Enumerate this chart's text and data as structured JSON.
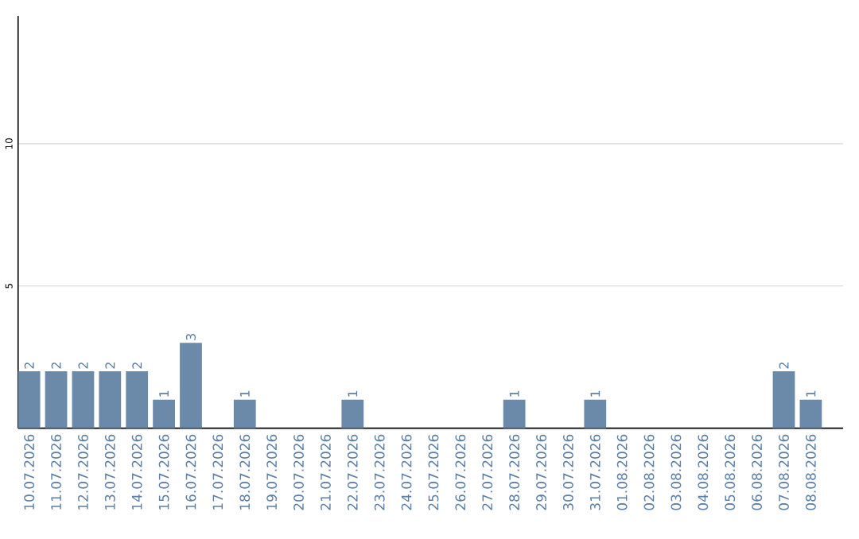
{
  "chart_data": {
    "type": "bar",
    "categories": [
      "10.07.2026",
      "11.07.2026",
      "12.07.2026",
      "13.07.2026",
      "14.07.2026",
      "15.07.2026",
      "16.07.2026",
      "17.07.2026",
      "18.07.2026",
      "19.07.2026",
      "20.07.2026",
      "21.07.2026",
      "22.07.2026",
      "23.07.2026",
      "24.07.2026",
      "25.07.2026",
      "26.07.2026",
      "27.07.2026",
      "28.07.2026",
      "29.07.2026",
      "30.07.2026",
      "31.07.2026",
      "01.08.2026",
      "02.08.2026",
      "03.08.2026",
      "04.08.2026",
      "05.08.2026",
      "06.08.2026",
      "07.08.2026",
      "08.08.2026"
    ],
    "values": [
      2,
      2,
      2,
      2,
      2,
      1,
      3,
      0,
      1,
      0,
      0,
      0,
      1,
      0,
      0,
      0,
      0,
      0,
      1,
      0,
      0,
      1,
      0,
      0,
      0,
      0,
      0,
      0,
      2,
      1
    ],
    "value_labels": [
      "2",
      "2",
      "2",
      "2",
      "2",
      "1",
      "3",
      null,
      "1",
      null,
      null,
      null,
      "1",
      null,
      null,
      null,
      null,
      null,
      "1",
      null,
      null,
      "1",
      null,
      null,
      null,
      null,
      null,
      null,
      "2",
      "1"
    ],
    "color": "#6b8aaa",
    "ylim": [
      0,
      14.5
    ],
    "yticks": [
      5,
      10
    ],
    "grid": "y"
  }
}
